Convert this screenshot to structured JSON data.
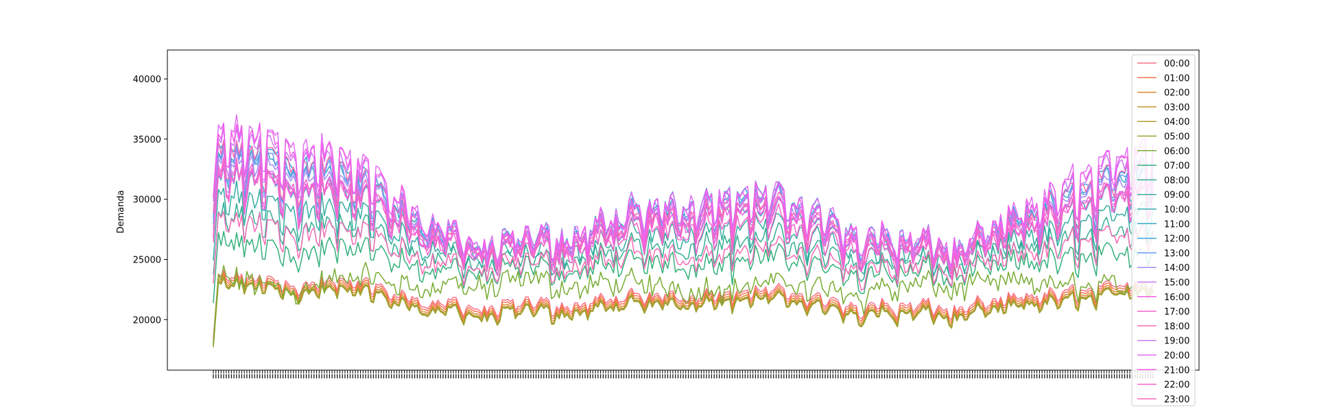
{
  "chart_data": {
    "type": "line",
    "title": "",
    "xlabel": "",
    "ylabel": "Demanda",
    "ylim": [
      15800,
      42400
    ],
    "y_ticks": [
      20000,
      25000,
      30000,
      35000,
      40000
    ],
    "y_tick_labels": [
      "20000",
      "25000",
      "30000",
      "35000",
      "40000"
    ],
    "x_tick_count": 365,
    "x_tick_labels_overlapping": true,
    "grid": false,
    "legend_position": "upper-right",
    "num_points": 365,
    "series": [
      {
        "name": "00:00",
        "color": "#f77189",
        "kind": "night",
        "w": 0.0
      },
      {
        "name": "01:00",
        "color": "#f7754f",
        "kind": "night",
        "w": 0.05
      },
      {
        "name": "02:00",
        "color": "#dc8932",
        "kind": "night",
        "w": 0.1
      },
      {
        "name": "03:00",
        "color": "#c39532",
        "kind": "night",
        "w": 0.14
      },
      {
        "name": "04:00",
        "color": "#ae9d31",
        "kind": "night",
        "w": 0.17
      },
      {
        "name": "05:00",
        "color": "#97a431",
        "kind": "night",
        "w": 0.16
      },
      {
        "name": "06:00",
        "color": "#77ab31",
        "kind": "morning",
        "w": 0.05
      },
      {
        "name": "07:00",
        "color": "#33b07a",
        "kind": "morning",
        "w": 0.35
      },
      {
        "name": "08:00",
        "color": "#35ae93",
        "kind": "day",
        "w": 0.55
      },
      {
        "name": "09:00",
        "color": "#36ada4",
        "kind": "day",
        "w": 0.7
      },
      {
        "name": "10:00",
        "color": "#37abb4",
        "kind": "day",
        "w": 0.85
      },
      {
        "name": "11:00",
        "color": "#38a9c5",
        "kind": "day",
        "w": 1.0
      },
      {
        "name": "12:00",
        "color": "#3aa5df",
        "kind": "day",
        "w": 1.05
      },
      {
        "name": "13:00",
        "color": "#6e9bf4",
        "kind": "day",
        "w": 1.0
      },
      {
        "name": "14:00",
        "color": "#a48cf4",
        "kind": "day",
        "w": 0.95
      },
      {
        "name": "15:00",
        "color": "#cc7af4",
        "kind": "day",
        "w": 0.88
      },
      {
        "name": "16:00",
        "color": "#f45deb",
        "kind": "day",
        "w": 0.85
      },
      {
        "name": "17:00",
        "color": "#f565cc",
        "kind": "day",
        "w": 0.88
      },
      {
        "name": "18:00",
        "color": "#f66bb6",
        "kind": "evening",
        "w": 0.92
      },
      {
        "name": "19:00",
        "color": "#cc7af4",
        "kind": "evening",
        "w": 0.98
      },
      {
        "name": "20:00",
        "color": "#e36ef4",
        "kind": "evening",
        "w": 1.05
      },
      {
        "name": "21:00",
        "color": "#f45deb",
        "kind": "evening",
        "w": 1.02
      },
      {
        "name": "22:00",
        "color": "#f565cc",
        "kind": "evening",
        "w": 0.75
      },
      {
        "name": "23:00",
        "color": "#f66bb6",
        "kind": "evening",
        "w": 0.45
      }
    ],
    "levels": {
      "night_base": 21000,
      "night_season_amp": 2500,
      "day_base": 26000,
      "day_winter_amp": 7500,
      "day_summer_amp": 4500,
      "weekend_drop": 0.27
    }
  }
}
